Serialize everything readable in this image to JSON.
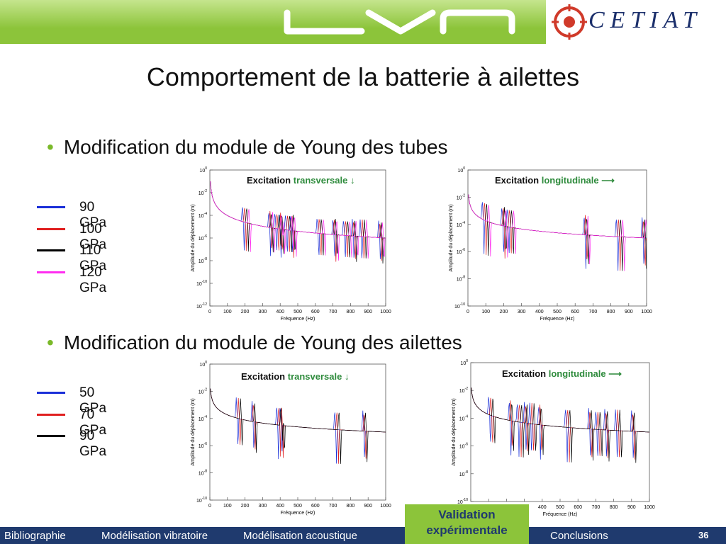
{
  "header": {
    "logo_left": "LVA",
    "logo_right": "CETIAT"
  },
  "title": "Comportement de la batterie à ailettes",
  "section1": {
    "bullet": "Modification du module de Young des tubes",
    "legend": [
      {
        "label": "90 GPa",
        "color": "#1a2fd8"
      },
      {
        "label": "100 GPa",
        "color": "#e02020"
      },
      {
        "label": "110 GPa",
        "color": "#000000"
      },
      {
        "label": "120 GPa",
        "color": "#ff2df0"
      }
    ],
    "chart_left": {
      "excitation": "Excitation",
      "direction": "transversale",
      "arrow": "↓"
    },
    "chart_right": {
      "excitation": "Excitation",
      "direction": "longitudinale",
      "arrow": "⟶"
    }
  },
  "section2": {
    "bullet": "Modification du module de Young des ailettes",
    "legend": [
      {
        "label": "50 GPa",
        "color": "#1a2fd8"
      },
      {
        "label": "70 GPa",
        "color": "#e02020"
      },
      {
        "label": "90 GPa",
        "color": "#000000"
      }
    ],
    "chart_left": {
      "excitation": "Excitation",
      "direction": "transversale",
      "arrow": "↓"
    },
    "chart_right": {
      "excitation": "Excitation",
      "direction": "longitudinale",
      "arrow": "⟶"
    }
  },
  "axes": {
    "xlabel": "Fréquence (Hz)",
    "ylabel": "Amplitude du déplacement (m)",
    "xticks": [
      "0",
      "100",
      "200",
      "300",
      "400",
      "500",
      "600",
      "700",
      "800",
      "900",
      "1000"
    ]
  },
  "chart_data": [
    {
      "type": "line",
      "title": "",
      "xlabel": "Fréquence (Hz)",
      "ylabel": "Amplitude du déplacement (m)",
      "xlim": [
        0,
        1000
      ],
      "ylim_exp": [
        -12,
        0
      ],
      "y_scale": "log",
      "yticks_exp": [
        0,
        -2,
        -4,
        -6,
        -8,
        -10,
        -12
      ],
      "series": [
        {
          "name": "90 GPa"
        },
        {
          "name": "100 GPa"
        },
        {
          "name": "110 GPa"
        },
        {
          "name": "120 GPa"
        }
      ],
      "resonances_hz": [
        185,
        335,
        370,
        395,
        430,
        460,
        610,
        700,
        760,
        810,
        855,
        960
      ]
    },
    {
      "type": "line",
      "title": "",
      "xlabel": "Fréquence (Hz)",
      "ylabel": "Amplitude du déplacement (m)",
      "xlim": [
        0,
        1000
      ],
      "ylim_exp": [
        -10,
        0
      ],
      "y_scale": "log",
      "yticks_exp": [
        0,
        -2,
        -4,
        -6,
        -8,
        -10
      ],
      "series": [
        {
          "name": "90 GPa"
        },
        {
          "name": "100 GPa"
        },
        {
          "name": "110 GPa"
        },
        {
          "name": "120 GPa"
        }
      ],
      "resonances_hz": [
        80,
        190,
        220,
        650,
        830,
        975
      ]
    },
    {
      "type": "line",
      "title": "",
      "xlabel": "Fréquence (Hz)",
      "ylabel": "Amplitude du déplacement (m)",
      "xlim": [
        0,
        1000
      ],
      "ylim_exp": [
        -10,
        0
      ],
      "y_scale": "log",
      "yticks_exp": [
        0,
        -2,
        -4,
        -6,
        -8,
        -10
      ],
      "series": [
        {
          "name": "50 GPa"
        },
        {
          "name": "70 GPa"
        },
        {
          "name": "90 GPa"
        }
      ],
      "resonances_hz": [
        150,
        240,
        380,
        400,
        710,
        870
      ]
    },
    {
      "type": "line",
      "title": "",
      "xlabel": "Fréquence (Hz)",
      "ylabel": "Amplitude du déplacement (m)",
      "xlim": [
        0,
        1000
      ],
      "ylim_exp": [
        -10,
        0
      ],
      "y_scale": "log",
      "yticks_exp": [
        0,
        -2,
        -4,
        -6,
        -8,
        -10
      ],
      "series": [
        {
          "name": "50 GPa"
        },
        {
          "name": "70 GPa"
        },
        {
          "name": "90 GPa"
        }
      ],
      "resonances_hz": [
        100,
        215,
        260,
        300,
        330,
        380,
        530,
        660,
        700,
        750,
        810,
        900
      ]
    }
  ],
  "footer": {
    "items": [
      "Bibliographie",
      "Modélisation vibratoire",
      "Modélisation acoustique",
      "Conclusions"
    ],
    "active": "Validation expérimentale",
    "page": "36"
  },
  "colors": {
    "accent": "#8cc43a",
    "navy": "#1f3a6e"
  }
}
